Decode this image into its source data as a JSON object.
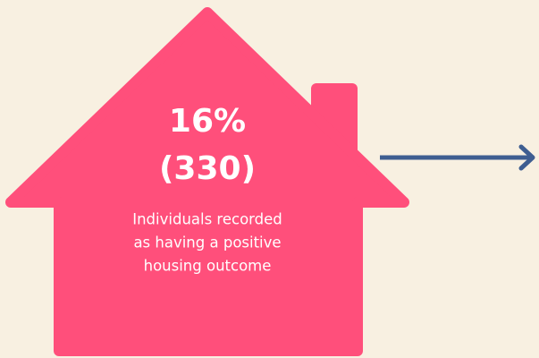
{
  "stat": {
    "percent": "16%",
    "count": "(330)"
  },
  "description": [
    "Individuals recorded",
    "as having a positive",
    "housing outcome"
  ]
}
